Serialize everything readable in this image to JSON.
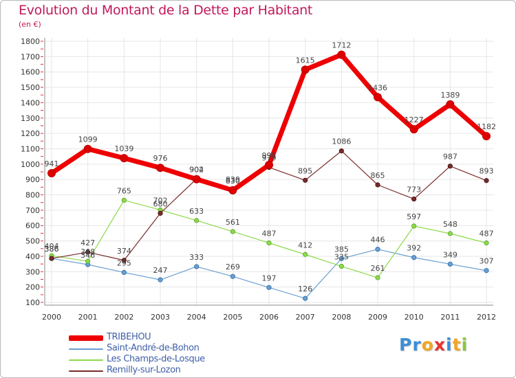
{
  "header": {
    "title": "Evolution du Montant de la Dette par Habitant",
    "subtitle": "(en €)"
  },
  "brand": {
    "letters": [
      "P",
      "r",
      "o",
      "x",
      "i",
      "t",
      "i"
    ],
    "colors": [
      "#3a8fd8",
      "#3a8fd8",
      "#f2a623",
      "#e2362f",
      "#3a8fd8",
      "#f2a623",
      "#8cc63f"
    ]
  },
  "chart_data": {
    "type": "line",
    "title": "Evolution du Montant de la Dette par Habitant",
    "subtitle": "(en €)",
    "xlabel": "",
    "ylabel": "",
    "x": [
      "2000",
      "2001",
      "2002",
      "2003",
      "2004",
      "2005",
      "2006",
      "2007",
      "2008",
      "2009",
      "2010",
      "2011",
      "2012"
    ],
    "ylim": [
      100,
      1800
    ],
    "yticks": [
      100,
      200,
      300,
      400,
      500,
      600,
      700,
      800,
      900,
      1000,
      1100,
      1200,
      1300,
      1400,
      1500,
      1600,
      1700,
      1800
    ],
    "grid": true,
    "legend": "bottom-left",
    "series": [
      {
        "name": "TRIBEHOU",
        "color": "#ee0000",
        "values": [
          941,
          1099,
          1039,
          976,
          902,
          830,
          995,
          1615,
          1712,
          1436,
          1227,
          1389,
          1182
        ]
      },
      {
        "name": "Saint-André-de-Bohon",
        "color": "#6a9fd0",
        "values": [
          386,
          346,
          295,
          247,
          333,
          269,
          197,
          126,
          385,
          446,
          392,
          349,
          307
        ]
      },
      {
        "name": "Les Champs-de-Losque",
        "color": "#8cd94a",
        "values": [
          404,
          368,
          765,
          702,
          633,
          561,
          487,
          412,
          335,
          261,
          597,
          548,
          487
        ]
      },
      {
        "name": "Remilly-sur-Lozon",
        "color": "#7a2a2a",
        "values": [
          386,
          427,
          374,
          680,
          904,
          839,
          979,
          895,
          1086,
          865,
          773,
          987,
          893
        ]
      }
    ]
  }
}
